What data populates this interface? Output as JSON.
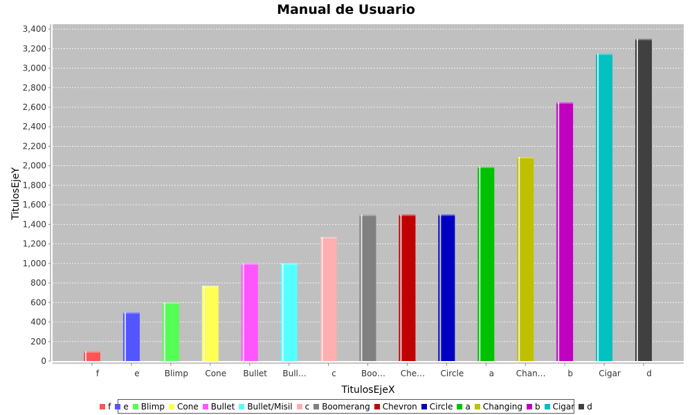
{
  "chart_data": {
    "type": "bar",
    "title": "Manual de Usuario",
    "xlabel": "TitulosEjeX",
    "ylabel": "TitulosEjeY",
    "ylim": [
      0,
      3450
    ],
    "ytick_step": 200,
    "grid": true,
    "legend_position": "bottom",
    "categories": [
      "f",
      "e",
      "Blimp",
      "Cone",
      "Bullet",
      "Bull…",
      "c",
      "Boo…",
      "Che…",
      "Circle",
      "a",
      "Chan…",
      "b",
      "Cigar",
      "d"
    ],
    "series": [
      {
        "name": "f",
        "value": 100,
        "color": "#ff5555"
      },
      {
        "name": "e",
        "value": 500,
        "color": "#5555ff"
      },
      {
        "name": "Blimp",
        "value": 600,
        "color": "#55ff55"
      },
      {
        "name": "Cone",
        "value": 770,
        "color": "#ffff55"
      },
      {
        "name": "Bullet",
        "value": 1000,
        "color": "#ff55ff"
      },
      {
        "name": "Bullet/Misil",
        "value": 1000,
        "color": "#55ffff"
      },
      {
        "name": "c",
        "value": 1270,
        "color": "#ffafaf"
      },
      {
        "name": "Boomerang",
        "value": 1500,
        "color": "#808080"
      },
      {
        "name": "Chevron",
        "value": 1500,
        "color": "#c00000"
      },
      {
        "name": "Circle",
        "value": 1500,
        "color": "#0000c0"
      },
      {
        "name": "a",
        "value": 1990,
        "color": "#00c000"
      },
      {
        "name": "Changing",
        "value": 2090,
        "color": "#c0c000"
      },
      {
        "name": "b",
        "value": 2650,
        "color": "#c000c0"
      },
      {
        "name": "Cigar",
        "value": 3150,
        "color": "#00c0c0"
      },
      {
        "name": "d",
        "value": 3300,
        "color": "#404040"
      }
    ]
  }
}
